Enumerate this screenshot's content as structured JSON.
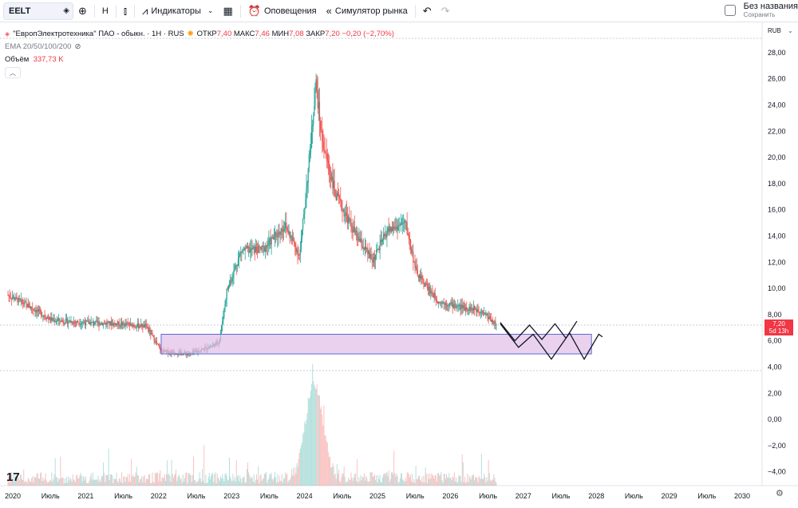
{
  "toolbar": {
    "symbol": "EELT",
    "interval": "H",
    "indicators_label": "Индикаторы",
    "alerts_label": "Оповещения",
    "replay_label": "Симулятор рынка",
    "layout_title": "Без названия",
    "layout_status": "Сохранить"
  },
  "legend": {
    "title": "\"ЕвропЭлектротехника\" ПАО - обыкн. · 1Н · RUS",
    "open_label": "ОТКР",
    "open": "7,40",
    "high_label": "МАКС",
    "high": "7,46",
    "low_label": "МИН",
    "low": "7,08",
    "close_label": "ЗАКР",
    "close": "7,20",
    "change": "−0,20 (−2,70%)",
    "ema_label": "EMA 20/50/100/200",
    "volume_label": "Объём",
    "volume_value": "337,73 K"
  },
  "price_axis": {
    "currency": "RUB",
    "ticks": [
      "28,00",
      "26,00",
      "24,00",
      "22,00",
      "20,00",
      "18,00",
      "16,00",
      "14,00",
      "12,00",
      "10,00",
      "8,00",
      "6,00",
      "4,00",
      "2,00",
      "0,00",
      "−2,00",
      "−4,00"
    ],
    "current_price": "7,20",
    "countdown": "5d 13h"
  },
  "time_axis": {
    "ticks": [
      "2020",
      "Июль",
      "2021",
      "Июль",
      "2022",
      "Июль",
      "2023",
      "Июль",
      "2024",
      "Июль",
      "2025",
      "Июль",
      "2026",
      "Июль",
      "2027",
      "Июль",
      "2028",
      "Июль",
      "2029",
      "Июль",
      "2030"
    ]
  },
  "colors": {
    "up": "#26a69a",
    "down": "#ef5350",
    "zone": "#e1bee7",
    "zone_border": "#5b6bd6",
    "price_tag": "#f23645"
  },
  "chart_data": {
    "type": "candlestick",
    "price_range": [
      -5,
      29.5
    ],
    "close_path_x": [
      2020.0,
      2020.3,
      2020.6,
      2021.0,
      2021.5,
      2021.9,
      2022.1,
      2022.5,
      2022.8,
      2022.9,
      2023.0,
      2023.2,
      2023.5,
      2023.8,
      2024.0,
      2024.15,
      2024.22,
      2024.3,
      2024.5,
      2024.8,
      2025.0,
      2025.2,
      2025.45,
      2025.6,
      2025.9,
      2026.2,
      2026.5,
      2026.7
    ],
    "close_path_y": [
      9.5,
      8.6,
      7.6,
      7.4,
      7.3,
      7.1,
      5.2,
      5.0,
      5.6,
      6.0,
      9.8,
      12.9,
      13.0,
      14.8,
      12.5,
      21.0,
      25.8,
      21.5,
      17.0,
      13.8,
      12.1,
      14.4,
      15.0,
      11.2,
      9.0,
      8.6,
      8.3,
      7.2
    ],
    "support_zone": {
      "x_range": [
        2022.1,
        2028.0
      ],
      "y_range": [
        5.0,
        6.5
      ]
    },
    "volume_peak_x": 2024.2
  }
}
